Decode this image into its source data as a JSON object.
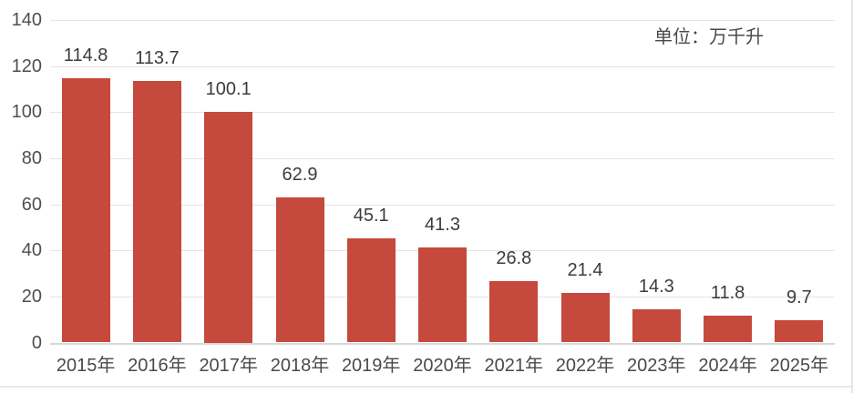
{
  "chart_data": {
    "type": "bar",
    "title": "",
    "unit_label": "单位：万千升",
    "categories": [
      "2015年",
      "2016年",
      "2017年",
      "2018年",
      "2019年",
      "2020年",
      "2021年",
      "2022年",
      "2023年",
      "2024年",
      "2025年"
    ],
    "values": [
      114.8,
      113.7,
      100.1,
      62.9,
      45.1,
      41.3,
      26.8,
      21.4,
      14.3,
      11.8,
      9.7
    ],
    "xlabel": "",
    "ylabel": "",
    "ylim": [
      0,
      140
    ],
    "yticks": [
      0,
      20,
      40,
      60,
      80,
      100,
      120,
      140
    ],
    "grid": true,
    "legend_position": "none",
    "data_labels": "outside-end",
    "bar_color": "#c5493c",
    "colors": {
      "bar": "#c5493c",
      "gridline": "#e5e5e5",
      "zero_line": "#d8d8d8",
      "value_text": "#3c3c3c",
      "axis_text": "#4a4a4a",
      "frame_border": "#e7e7e7"
    }
  }
}
